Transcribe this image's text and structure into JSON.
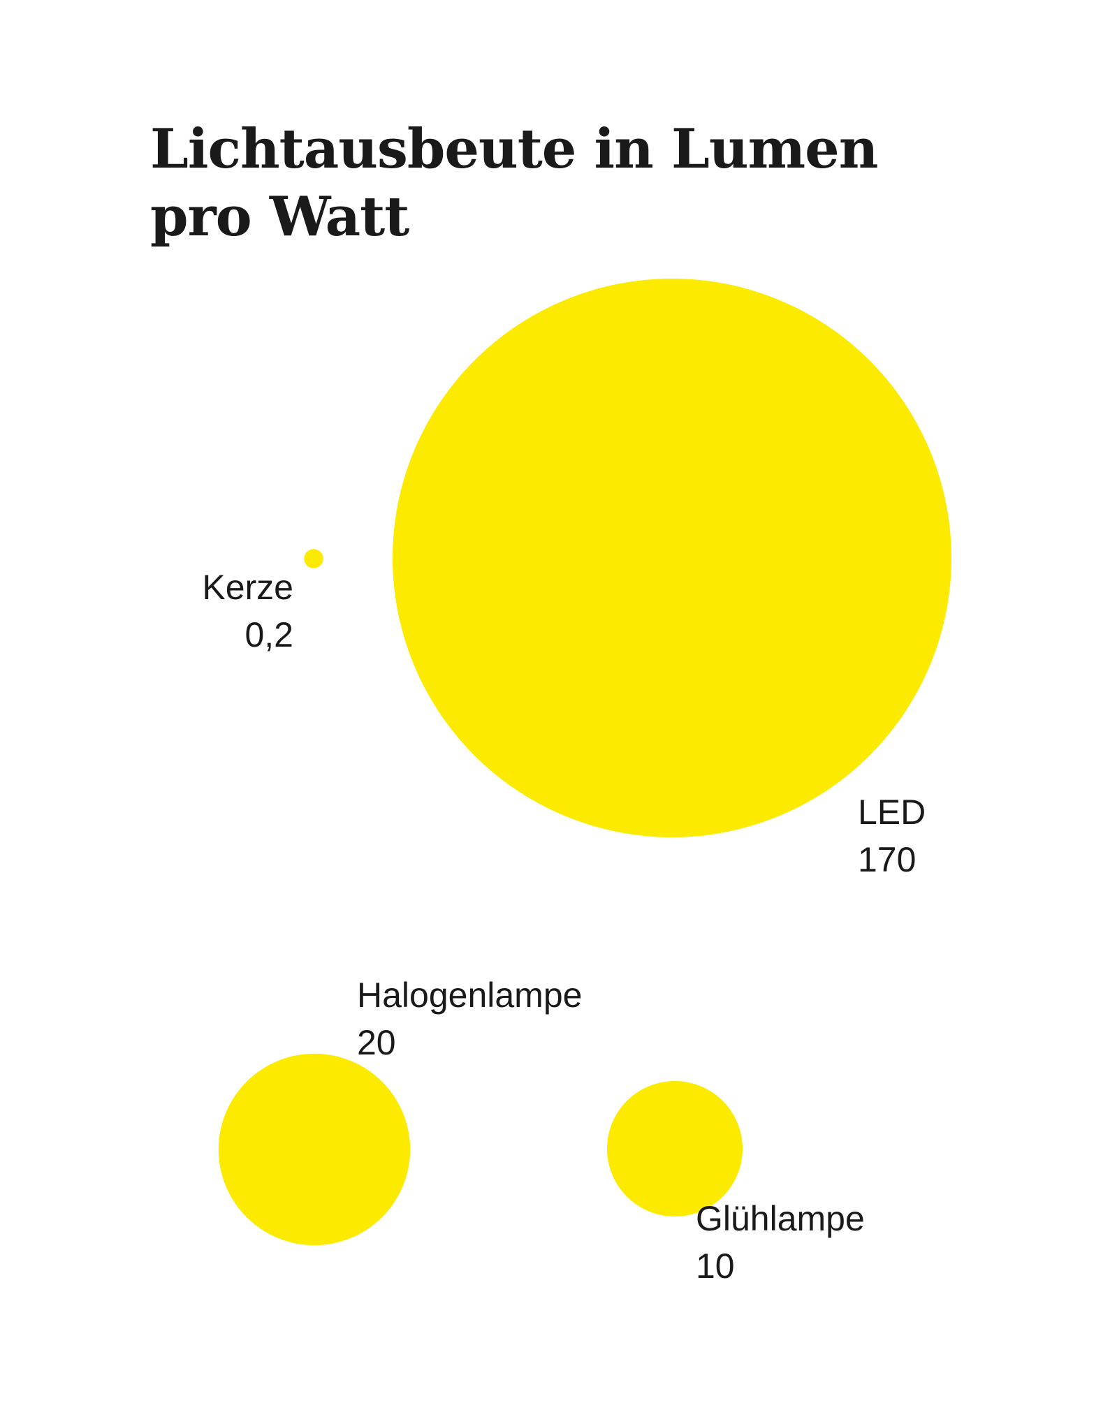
{
  "chart_data": {
    "type": "bubble",
    "title_lines": [
      "Lichtausbeute in Lumen",
      "pro Watt"
    ],
    "items": [
      {
        "name": "LED",
        "value": 170,
        "value_label": "170"
      },
      {
        "name": "Kerze",
        "value": 0.2,
        "value_label": "0,2"
      },
      {
        "name": "Halogenlampe",
        "value": 20,
        "value_label": "20"
      },
      {
        "name": "Glühlampe",
        "value": 10,
        "value_label": "10"
      }
    ],
    "color": "#FCEB00",
    "text_color": "#1a1a1a"
  }
}
